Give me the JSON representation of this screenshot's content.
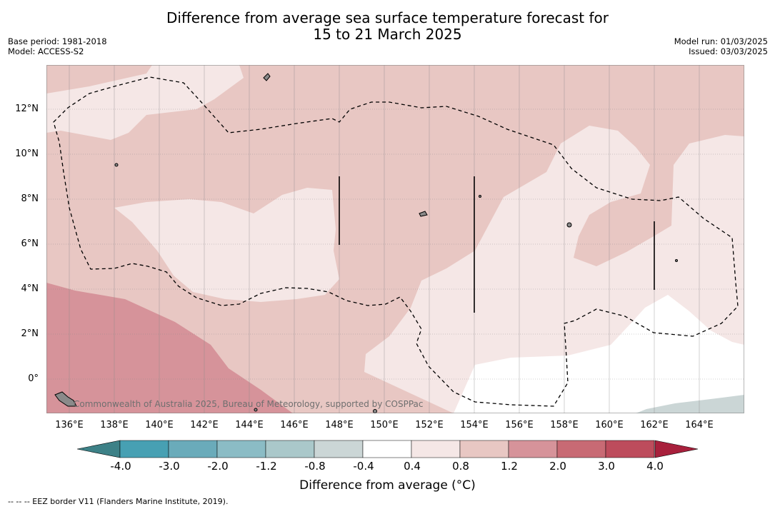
{
  "title_line1": "Difference from average sea surface temperature forecast for",
  "title_line2": "15 to 21 March 2025",
  "base_period": "Base period: 1981-2018",
  "model": "Model: ACCESS-S2",
  "model_run": "Model run: 01/03/2025",
  "issued": "Issued: 03/03/2025",
  "credit": "Commonwealth of Australia 2025, Bureau of Meteorology, supported by COSPPac",
  "lat_labels": [
    "12°N",
    "10°N",
    "8°N",
    "6°N",
    "4°N",
    "2°N",
    "0°"
  ],
  "lon_labels": [
    "136°E",
    "138°E",
    "140°E",
    "142°E",
    "144°E",
    "146°E",
    "148°E",
    "150°E",
    "152°E",
    "154°E",
    "156°E",
    "158°E",
    "160°E",
    "162°E",
    "164°E"
  ],
  "colorbar": {
    "title": "Difference from average (°C)",
    "ticks": [
      "-4.0",
      "-3.0",
      "-2.0",
      "-1.2",
      "-0.8",
      "-0.4",
      "0.4",
      "0.8",
      "1.2",
      "2.0",
      "3.0",
      "4.0"
    ],
    "colors": [
      "#47a0b3",
      "#6aabba",
      "#8bbcc5",
      "#aac8ca",
      "#cbd6d6",
      "#ffffff",
      "#f5e7e6",
      "#e8c7c3",
      "#d6939a",
      "#c86a74",
      "#bd4c5c"
    ],
    "under_color": "#3d8187",
    "over_color": "#a8203c"
  },
  "footer": "--  --  -- EEZ border V11 (Flanders Marine Institute, 2019)."
}
